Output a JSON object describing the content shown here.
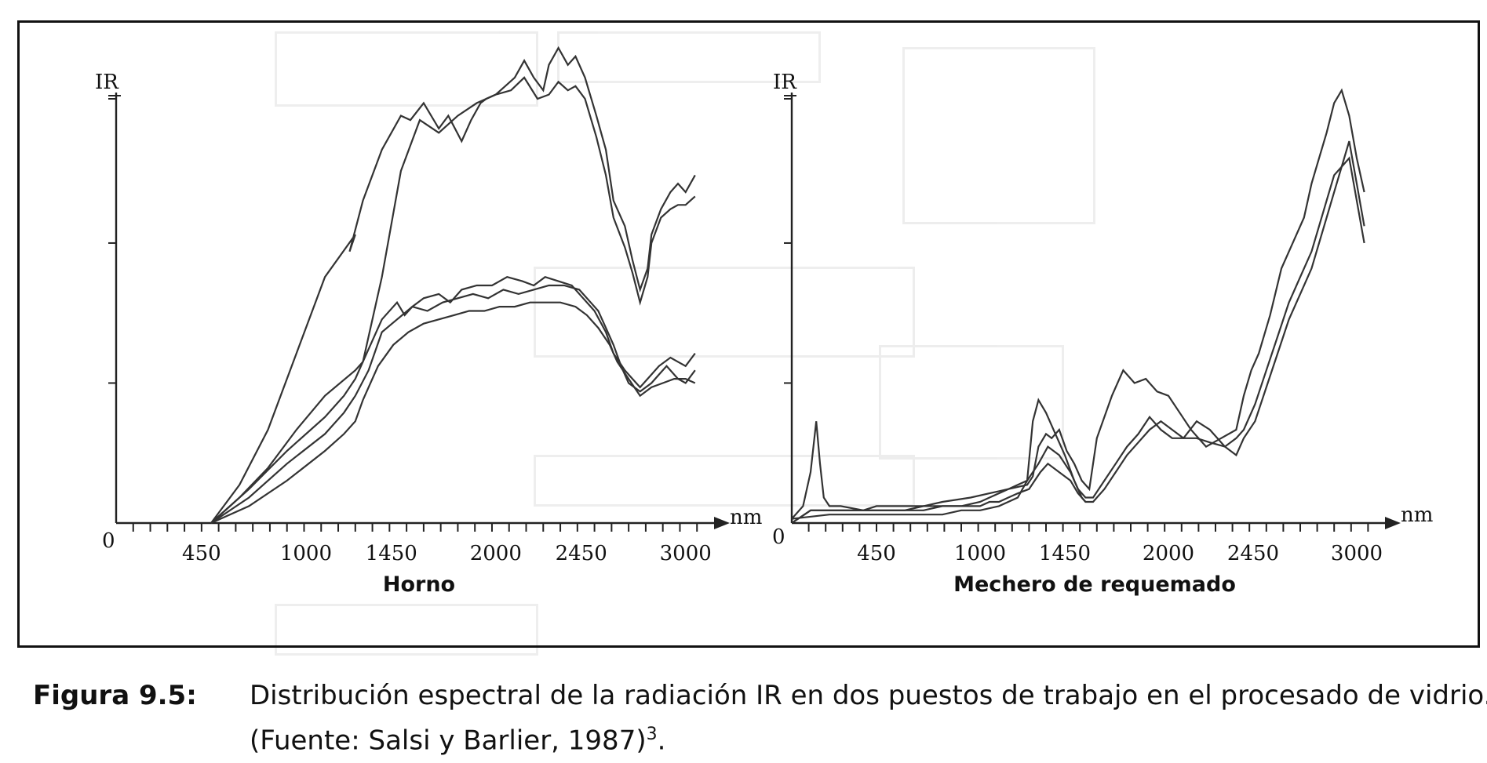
{
  "figure": {
    "label": "Figura 9.5:",
    "caption_line1": "Distribución espectral de la radiación IR en dos puestos de trabajo en el procesado de vidrio.",
    "caption_line2": "(Fuente: Salsi y Barlier, 1987)",
    "caption_sup": "3",
    "caption_end": "."
  },
  "chart_data": [
    {
      "type": "line",
      "title": "Horno",
      "ylabel": "IR",
      "xlabel": "nm",
      "origin_label": "0",
      "xlim": [
        0,
        3150
      ],
      "ylim": [
        0,
        100
      ],
      "x_ticks": [
        450,
        1000,
        1450,
        2000,
        2450,
        3000
      ],
      "y_ticks": [
        33,
        66,
        100
      ],
      "grid": false,
      "series": [
        {
          "x": [
            500,
            650,
            800,
            950,
            1100,
            1260,
            1230,
            1300,
            1400,
            1500,
            1550,
            1620,
            1700,
            1750,
            1820,
            1870,
            1920,
            1950,
            2000,
            2050,
            2100,
            2150,
            2200,
            2250,
            2280,
            2330,
            2380,
            2420,
            2470,
            2530,
            2580,
            2620,
            2680,
            2720,
            2760,
            2800,
            2820,
            2870,
            2920,
            2960,
            3000,
            3050
          ],
          "y": [
            0,
            9,
            22,
            40,
            58,
            68,
            64,
            76,
            88,
            96,
            95,
            99,
            93,
            96,
            90,
            95,
            99,
            100,
            101,
            103,
            105,
            109,
            105,
            102,
            108,
            112,
            108,
            110,
            105,
            96,
            88,
            76,
            70,
            62,
            55,
            60,
            68,
            74,
            78,
            80,
            78,
            82
          ]
        },
        {
          "x": [
            500,
            650,
            800,
            950,
            1100,
            1260,
            1300,
            1400,
            1500,
            1600,
            1700,
            1800,
            1900,
            2000,
            2080,
            2150,
            2220,
            2280,
            2330,
            2380,
            2420,
            2470,
            2530,
            2580,
            2620,
            2680,
            2720,
            2760,
            2800,
            2820,
            2870,
            2920,
            2960,
            3000,
            3050
          ],
          "y": [
            0,
            6,
            13,
            22,
            30,
            36,
            38,
            58,
            83,
            95,
            92,
            96,
            99,
            101,
            102,
            105,
            100,
            101,
            104,
            102,
            103,
            100,
            91,
            82,
            72,
            65,
            59,
            52,
            58,
            66,
            72,
            74,
            75,
            75,
            77
          ]
        },
        {
          "x": [
            500,
            700,
            900,
            1100,
            1200,
            1260,
            1320,
            1400,
            1480,
            1520,
            1560,
            1620,
            1700,
            1760,
            1820,
            1900,
            1980,
            2060,
            2140,
            2200,
            2260,
            2330,
            2400,
            2460,
            2520,
            2580,
            2620,
            2680,
            2720,
            2760,
            2820,
            2860,
            2920,
            2960,
            3000,
            3050
          ],
          "y": [
            0,
            8,
            17,
            25,
            30,
            34,
            40,
            48,
            52,
            49,
            51,
            53,
            54,
            52,
            55,
            56,
            56,
            58,
            57,
            56,
            58,
            57,
            56,
            53,
            50,
            45,
            40,
            36,
            34,
            32,
            35,
            37,
            39,
            38,
            37,
            40
          ]
        },
        {
          "x": [
            500,
            700,
            900,
            1100,
            1200,
            1260,
            1330,
            1400,
            1480,
            1560,
            1640,
            1720,
            1800,
            1880,
            1960,
            2040,
            2120,
            2200,
            2280,
            2360,
            2440,
            2500,
            2540,
            2580,
            2620,
            2660,
            2700,
            2760,
            2820,
            2860,
            2900,
            2960,
            3000,
            3050
          ],
          "y": [
            0,
            6,
            14,
            21,
            26,
            30,
            36,
            45,
            48,
            51,
            50,
            52,
            53,
            54,
            53,
            55,
            54,
            55,
            56,
            56,
            55,
            52,
            50,
            46,
            42,
            37,
            33,
            31,
            33,
            35,
            37,
            34,
            33,
            36
          ]
        },
        {
          "x": [
            500,
            700,
            900,
            1100,
            1200,
            1260,
            1300,
            1380,
            1460,
            1540,
            1620,
            1700,
            1780,
            1860,
            1940,
            2020,
            2100,
            2180,
            2260,
            2340,
            2420,
            2480,
            2540,
            2600,
            2640,
            2700,
            2760,
            2820,
            2880,
            2940,
            3000,
            3050
          ],
          "y": [
            0,
            4,
            10,
            17,
            21,
            24,
            29,
            37,
            42,
            45,
            47,
            48,
            49,
            50,
            50,
            51,
            51,
            52,
            52,
            52,
            51,
            49,
            46,
            42,
            38,
            34,
            30,
            32,
            33,
            34,
            34,
            33
          ]
        }
      ]
    },
    {
      "type": "line",
      "title": "Mechero de requemado",
      "ylabel": "IR",
      "xlabel": "nm",
      "origin_label": "0",
      "xlim": [
        0,
        3150
      ],
      "ylim": [
        0,
        100
      ],
      "x_ticks": [
        450,
        1000,
        1450,
        2000,
        2450,
        3000
      ],
      "y_ticks": [
        33,
        66,
        100
      ],
      "grid": false,
      "series": [
        {
          "x": [
            0,
            60,
            100,
            130,
            150,
            170,
            200,
            260,
            380,
            450,
            600,
            700,
            800,
            950,
            1050,
            1150,
            1250,
            1280,
            1310,
            1350,
            1380,
            1420,
            1460,
            1500,
            1540,
            1580,
            1620,
            1700,
            1760,
            1820,
            1880,
            1940,
            2000,
            2060,
            2120,
            2200,
            2280,
            2360,
            2400,
            2440,
            2480,
            2540,
            2600,
            2660,
            2720,
            2760,
            2800,
            2840,
            2880,
            2920,
            2960,
            3000,
            3040
          ],
          "y": [
            1,
            4,
            12,
            24,
            14,
            6,
            4,
            4,
            3,
            4,
            4,
            4,
            5,
            6,
            7,
            8,
            9,
            11,
            18,
            21,
            20,
            22,
            17,
            14,
            10,
            8,
            20,
            30,
            36,
            33,
            34,
            31,
            30,
            26,
            22,
            18,
            20,
            22,
            30,
            36,
            40,
            49,
            60,
            66,
            72,
            80,
            86,
            92,
            99,
            102,
            96,
            86,
            78
          ]
        },
        {
          "x": [
            0,
            100,
            200,
            300,
            400,
            500,
            600,
            700,
            800,
            900,
            1000,
            1050,
            1100,
            1150,
            1200,
            1250,
            1280,
            1310,
            1360,
            1420,
            1480,
            1520,
            1560,
            1600,
            1660,
            1720,
            1780,
            1840,
            1900,
            1960,
            2020,
            2080,
            2150,
            2220,
            2300,
            2360,
            2400,
            2460,
            2520,
            2580,
            2640,
            2700,
            2760,
            2800,
            2840,
            2880,
            2920,
            2960,
            3000,
            3040
          ],
          "y": [
            0,
            3,
            3,
            3,
            3,
            3,
            3,
            4,
            4,
            4,
            5,
            6,
            7,
            8,
            9,
            10,
            12,
            14,
            18,
            16,
            12,
            8,
            6,
            6,
            10,
            14,
            18,
            21,
            25,
            22,
            20,
            20,
            24,
            22,
            18,
            16,
            20,
            24,
            32,
            40,
            48,
            54,
            60,
            66,
            72,
            78,
            84,
            90,
            80,
            70
          ]
        },
        {
          "x": [
            0,
            100,
            200,
            300,
            400,
            500,
            600,
            700,
            800,
            900,
            1000,
            1050,
            1100,
            1150,
            1200,
            1260,
            1290,
            1320,
            1360,
            1420,
            1480,
            1520,
            1560,
            1600,
            1660,
            1720,
            1780,
            1840,
            1900,
            1960,
            2020,
            2080,
            2150,
            2220,
            2300,
            2360,
            2400,
            2460,
            2520,
            2580,
            2640,
            2700,
            2760,
            2800,
            2840,
            2880,
            2920,
            2960,
            3000,
            3040
          ],
          "y": [
            0,
            3,
            3,
            3,
            3,
            3,
            3,
            3,
            4,
            4,
            4,
            5,
            5,
            6,
            7,
            8,
            10,
            12,
            14,
            12,
            10,
            7,
            5,
            5,
            8,
            12,
            16,
            19,
            22,
            24,
            22,
            20,
            20,
            19,
            18,
            20,
            22,
            28,
            36,
            44,
            52,
            58,
            64,
            70,
            76,
            82,
            84,
            86,
            76,
            66
          ]
        },
        {
          "x": [
            0,
            200,
            400,
            500,
            600,
            700,
            800,
            900,
            1000,
            1100,
            1200,
            1250,
            1280,
            1310,
            1350,
            1400,
            1450,
            1500,
            1540,
            1560
          ],
          "y": [
            1,
            2,
            2,
            2,
            2,
            2,
            2,
            3,
            3,
            4,
            6,
            10,
            24,
            29,
            26,
            21,
            16,
            10,
            6,
            5
          ]
        }
      ]
    }
  ]
}
